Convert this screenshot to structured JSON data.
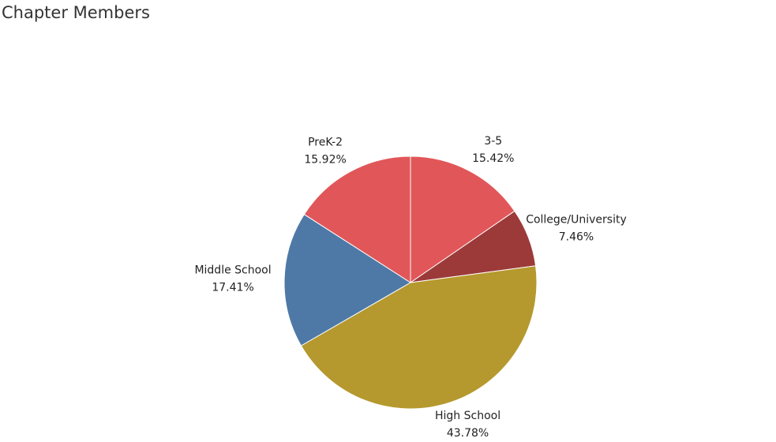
{
  "chart_data": {
    "type": "pie",
    "title": "Chapter Members",
    "categories": [
      "3-5",
      "College/University",
      "High School",
      "Middle School",
      "PreK-2"
    ],
    "values": [
      15.42,
      7.46,
      43.78,
      17.41,
      15.92
    ],
    "value_labels": [
      "15.42%",
      "7.46%",
      "43.78%",
      "17.41%",
      "15.92%"
    ],
    "colors": [
      "#e15759",
      "#9c3a3a",
      "#b5992e",
      "#4e79a7",
      "#e15759"
    ]
  }
}
